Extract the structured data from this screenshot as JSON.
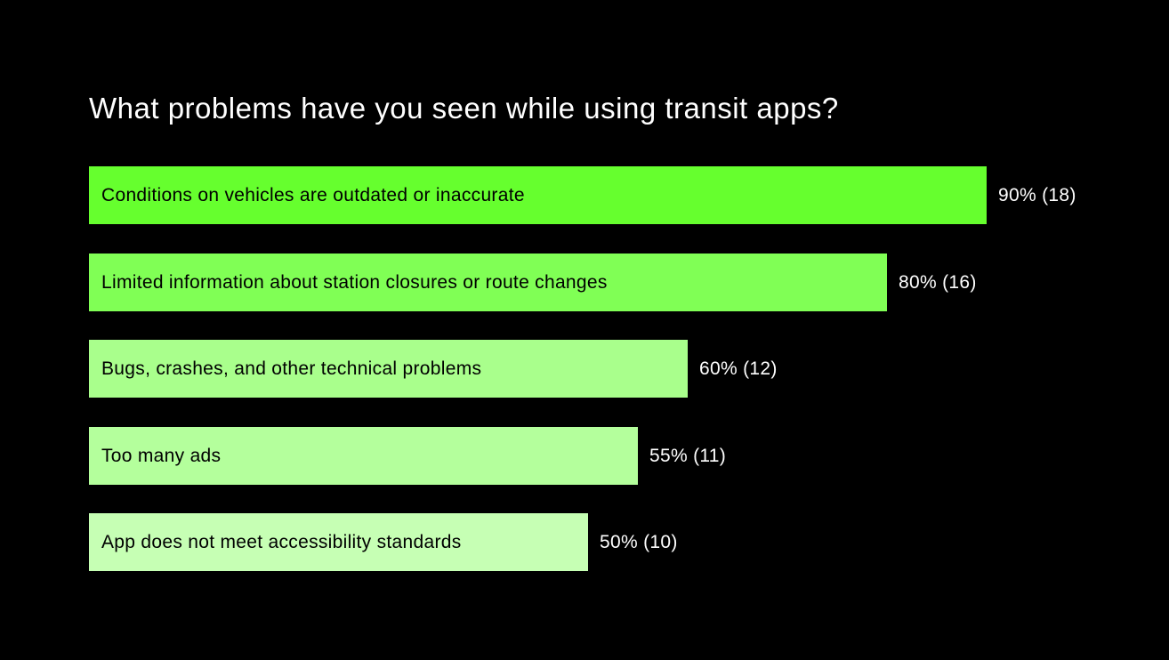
{
  "chart_data": {
    "type": "bar",
    "orientation": "horizontal",
    "title": "What problems have you seen while using transit apps?",
    "xlabel": "",
    "ylabel": "",
    "xlim": [
      0,
      100
    ],
    "grid": false,
    "legend": "none",
    "categories": [
      "Conditions on vehicles are outdated or inaccurate",
      "Limited information about station closures or route changes",
      "Bugs, crashes, and other technical problems",
      "Too many ads",
      "App does not meet accessibility standards"
    ],
    "values": [
      90,
      80,
      60,
      55,
      50
    ],
    "counts": [
      18,
      16,
      12,
      11,
      10
    ],
    "data_labels": [
      "90% (18)",
      "80% (16)",
      "60% (12)",
      "55% (11)",
      "50% (10)"
    ],
    "bar_colors": [
      "#66ff2e",
      "#80ff55",
      "#a9ff8c",
      "#b4ff9c",
      "#c6ffb4"
    ],
    "background_color": "#000000"
  }
}
